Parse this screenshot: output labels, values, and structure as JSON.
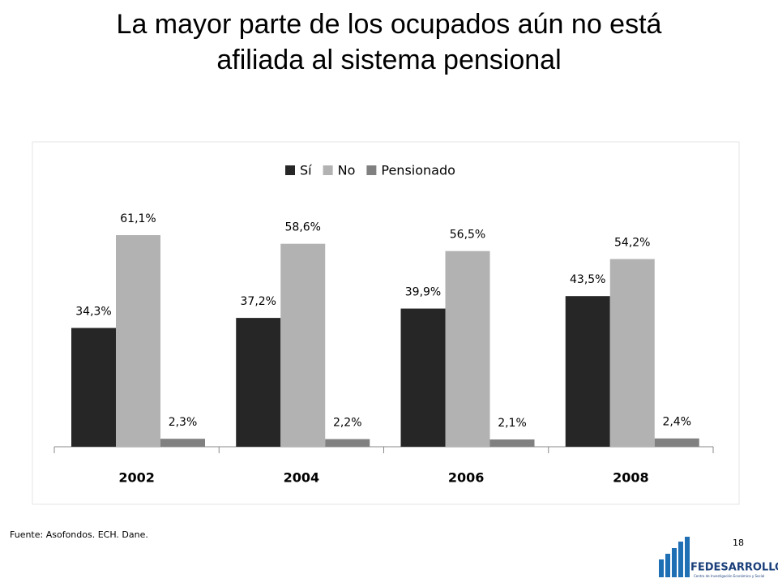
{
  "chart_data": {
    "type": "bar",
    "title": [
      "La mayor parte de los ocupados aún no está",
      "afiliada al sistema pensional"
    ],
    "categories": [
      "2002",
      "2004",
      "2006",
      "2008"
    ],
    "series": [
      {
        "name": "Sí",
        "color": "#262626",
        "values": [
          34.3,
          37.2,
          39.9,
          43.5
        ],
        "value_labels": [
          "34,3%",
          "37,2%",
          "39,9%",
          "43,5%"
        ]
      },
      {
        "name": "No",
        "color": "#b2b2b2",
        "values": [
          61.1,
          58.6,
          56.5,
          54.2
        ],
        "value_labels": [
          "61,1%",
          "58,6%",
          "56,5%",
          "54,2%"
        ]
      },
      {
        "name": "Pensionado",
        "color": "#808080",
        "values": [
          2.3,
          2.2,
          2.1,
          2.4
        ],
        "value_labels": [
          "2,3%",
          "2,2%",
          "2,1%",
          "2,4%"
        ]
      }
    ],
    "ylim": [
      0,
      70
    ],
    "legend": "top"
  },
  "footer": {
    "source": "Fuente: Asofondos. ECH. Dane.",
    "page": "18",
    "logo": "FEDESARROLLO",
    "logo_subtitle": "Centro de Investigación Económica y Social"
  }
}
